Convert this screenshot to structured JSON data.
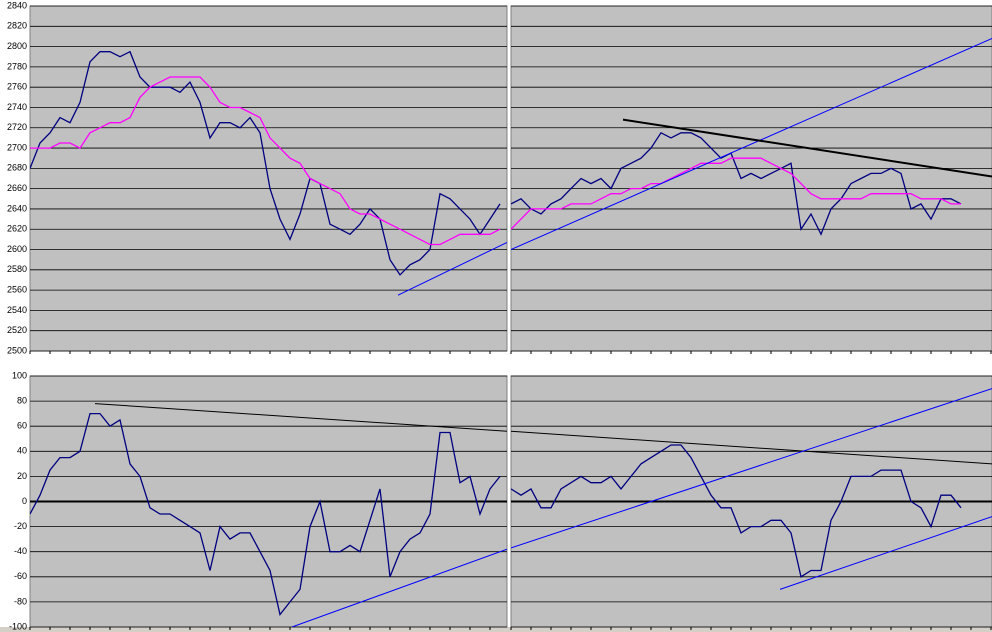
{
  "chart_data": [
    {
      "type": "line",
      "xlim": [
        0,
        47.7
      ],
      "ylim": [
        2500,
        2840
      ],
      "yticks": [
        2500,
        2520,
        2540,
        2560,
        2580,
        2600,
        2620,
        2640,
        2660,
        2680,
        2700,
        2720,
        2740,
        2760,
        2780,
        2800,
        2820,
        2840
      ],
      "tick_labels": true,
      "grid": true,
      "series": [
        {
          "name": "price",
          "color": "#000080",
          "x": [
            0,
            1,
            2,
            3,
            4,
            5,
            6,
            7,
            8,
            9,
            10,
            11,
            12,
            13,
            14,
            15,
            16,
            17,
            18,
            19,
            20,
            21,
            22,
            23,
            24,
            25,
            26,
            27,
            28,
            29,
            30,
            31,
            32,
            33,
            34,
            35,
            36,
            37,
            38,
            39,
            40,
            41,
            42,
            43,
            44,
            45,
            46,
            47
          ],
          "values": [
            2680,
            2705,
            2715,
            2730,
            2725,
            2745,
            2785,
            2795,
            2795,
            2790,
            2795,
            2770,
            2760,
            2760,
            2760,
            2755,
            2765,
            2745,
            2710,
            2725,
            2725,
            2720,
            2730,
            2715,
            2660,
            2630,
            2610,
            2635,
            2670,
            2665,
            2625,
            2620,
            2615,
            2625,
            2640,
            2630,
            2590,
            2575,
            2585,
            2590,
            2600,
            2655,
            2650,
            2640,
            2630,
            2615,
            2630,
            2645
          ]
        },
        {
          "name": "average",
          "color": "#ff00ff",
          "x": [
            0,
            1,
            2,
            3,
            4,
            5,
            6,
            7,
            8,
            9,
            10,
            11,
            12,
            13,
            14,
            15,
            16,
            17,
            18,
            19,
            20,
            21,
            22,
            23,
            24,
            25,
            26,
            27,
            28,
            29,
            30,
            31,
            32,
            33,
            34,
            35,
            36,
            37,
            38,
            39,
            40,
            41,
            42,
            43,
            44,
            45,
            46,
            47
          ],
          "values": [
            2700,
            2700,
            2700,
            2705,
            2705,
            2700,
            2715,
            2720,
            2725,
            2725,
            2730,
            2750,
            2760,
            2765,
            2770,
            2770,
            2770,
            2770,
            2760,
            2745,
            2740,
            2740,
            2735,
            2730,
            2710,
            2700,
            2690,
            2685,
            2670,
            2665,
            2660,
            2655,
            2640,
            2635,
            2635,
            2630,
            2625,
            2620,
            2615,
            2610,
            2605,
            2605,
            2610,
            2615,
            2615,
            2615,
            2615,
            2620
          ]
        },
        {
          "name": "trend",
          "color": "#0000ff",
          "x": [
            36.8,
            47.7
          ],
          "values": [
            2555,
            2607
          ]
        }
      ]
    },
    {
      "type": "line",
      "xlim": [
        0,
        48.1
      ],
      "ylim": [
        2500,
        2840
      ],
      "yticks": [
        2500,
        2520,
        2540,
        2560,
        2580,
        2600,
        2620,
        2640,
        2660,
        2680,
        2700,
        2720,
        2740,
        2760,
        2780,
        2800,
        2820,
        2840
      ],
      "tick_labels": false,
      "grid": true,
      "series": [
        {
          "name": "price",
          "color": "#000080",
          "x": [
            0,
            1,
            2,
            3,
            4,
            5,
            6,
            7,
            8,
            9,
            10,
            11,
            12,
            13,
            14,
            15,
            16,
            17,
            18,
            19,
            20,
            21,
            22,
            23,
            24,
            25,
            26,
            27,
            28,
            29,
            30,
            31,
            32,
            33,
            34,
            35,
            36,
            37,
            38,
            39,
            40,
            41,
            42,
            43,
            44,
            45
          ],
          "values": [
            2645,
            2650,
            2640,
            2635,
            2645,
            2650,
            2660,
            2670,
            2665,
            2670,
            2660,
            2680,
            2685,
            2690,
            2700,
            2715,
            2710,
            2715,
            2715,
            2710,
            2700,
            2690,
            2695,
            2670,
            2675,
            2670,
            2675,
            2680,
            2685,
            2620,
            2635,
            2615,
            2640,
            2650,
            2665,
            2670,
            2675,
            2675,
            2680,
            2675,
            2640,
            2645,
            2630,
            2650,
            2650,
            2645
          ]
        },
        {
          "name": "average",
          "color": "#ff00ff",
          "x": [
            0,
            1,
            2,
            3,
            4,
            5,
            6,
            7,
            8,
            9,
            10,
            11,
            12,
            13,
            14,
            15,
            16,
            17,
            18,
            19,
            20,
            21,
            22,
            23,
            24,
            25,
            26,
            27,
            28,
            29,
            30,
            31,
            32,
            33,
            34,
            35,
            36,
            37,
            38,
            39,
            40,
            41,
            42,
            43,
            44,
            45
          ],
          "values": [
            2620,
            2630,
            2640,
            2640,
            2640,
            2640,
            2645,
            2645,
            2645,
            2650,
            2655,
            2655,
            2660,
            2660,
            2665,
            2665,
            2670,
            2675,
            2680,
            2685,
            2685,
            2685,
            2690,
            2690,
            2690,
            2690,
            2685,
            2680,
            2675,
            2665,
            2655,
            2650,
            2650,
            2650,
            2650,
            2650,
            2655,
            2655,
            2655,
            2655,
            2655,
            2650,
            2650,
            2650,
            2645,
            2645
          ]
        },
        {
          "name": "trend",
          "color": "#0000ff",
          "x": [
            0,
            48.1
          ],
          "values": [
            2600,
            2808
          ]
        },
        {
          "name": "resistance",
          "color": "#000000",
          "x": [
            11.2,
            48.1
          ],
          "values": [
            2728,
            2672
          ]
        }
      ]
    },
    {
      "type": "line",
      "xlim": [
        0,
        47.7
      ],
      "ylim": [
        -100,
        100
      ],
      "yticks": [
        -100,
        -80,
        -60,
        -40,
        -20,
        0,
        20,
        40,
        60,
        80,
        100
      ],
      "tick_labels": true,
      "grid": true,
      "zero_line": true,
      "series": [
        {
          "name": "oscillator",
          "color": "#000080",
          "x": [
            0,
            1,
            2,
            3,
            4,
            5,
            6,
            7,
            8,
            9,
            10,
            11,
            12,
            13,
            14,
            15,
            16,
            17,
            18,
            19,
            20,
            21,
            22,
            23,
            24,
            25,
            26,
            27,
            28,
            29,
            30,
            31,
            32,
            33,
            34,
            35,
            36,
            37,
            38,
            39,
            40,
            41,
            42,
            43,
            44,
            45,
            46,
            47
          ],
          "values": [
            -10,
            5,
            25,
            35,
            35,
            40,
            70,
            70,
            60,
            65,
            30,
            20,
            -5,
            -10,
            -10,
            -15,
            -20,
            -25,
            -55,
            -20,
            -30,
            -25,
            -25,
            -40,
            -55,
            -90,
            -80,
            -70,
            -20,
            0,
            -40,
            -40,
            -35,
            -40,
            -15,
            10,
            -60,
            -40,
            -30,
            -25,
            -10,
            55,
            55,
            15,
            20,
            -10,
            10,
            20
          ]
        },
        {
          "name": "resistance",
          "color": "#000000",
          "x": [
            6.5,
            47.7
          ],
          "values": [
            78,
            56
          ]
        },
        {
          "name": "trend",
          "color": "#0000ff",
          "x": [
            26.2,
            47.7
          ],
          "values": [
            -100,
            -38
          ]
        }
      ]
    },
    {
      "type": "line",
      "xlim": [
        0,
        48.1
      ],
      "ylim": [
        -100,
        100
      ],
      "yticks": [
        -100,
        -80,
        -60,
        -40,
        -20,
        0,
        20,
        40,
        60,
        80,
        100
      ],
      "tick_labels": false,
      "grid": true,
      "zero_line": true,
      "series": [
        {
          "name": "oscillator",
          "color": "#000080",
          "x": [
            0,
            1,
            2,
            3,
            4,
            5,
            6,
            7,
            8,
            9,
            10,
            11,
            12,
            13,
            14,
            15,
            16,
            17,
            18,
            19,
            20,
            21,
            22,
            23,
            24,
            25,
            26,
            27,
            28,
            29,
            30,
            31,
            32,
            33,
            34,
            35,
            36,
            37,
            38,
            39,
            40,
            41,
            42,
            43,
            44,
            45
          ],
          "values": [
            10,
            5,
            10,
            -5,
            -5,
            10,
            15,
            20,
            15,
            15,
            20,
            10,
            20,
            30,
            35,
            40,
            45,
            45,
            35,
            20,
            5,
            -5,
            -5,
            -25,
            -20,
            -20,
            -15,
            -15,
            -25,
            -60,
            -55,
            -55,
            -15,
            0,
            20,
            20,
            20,
            25,
            25,
            25,
            0,
            -5,
            -20,
            5,
            5,
            -5
          ]
        },
        {
          "name": "resistance",
          "color": "#000000",
          "x": [
            0,
            48.1
          ],
          "values": [
            56,
            30
          ]
        },
        {
          "name": "trend",
          "color": "#0000ff",
          "x": [
            0,
            48.1
          ],
          "values": [
            -37,
            90
          ]
        },
        {
          "name": "support",
          "color": "#0000ff",
          "x": [
            26.9,
            48.1
          ],
          "values": [
            -70,
            -12
          ]
        }
      ]
    }
  ]
}
